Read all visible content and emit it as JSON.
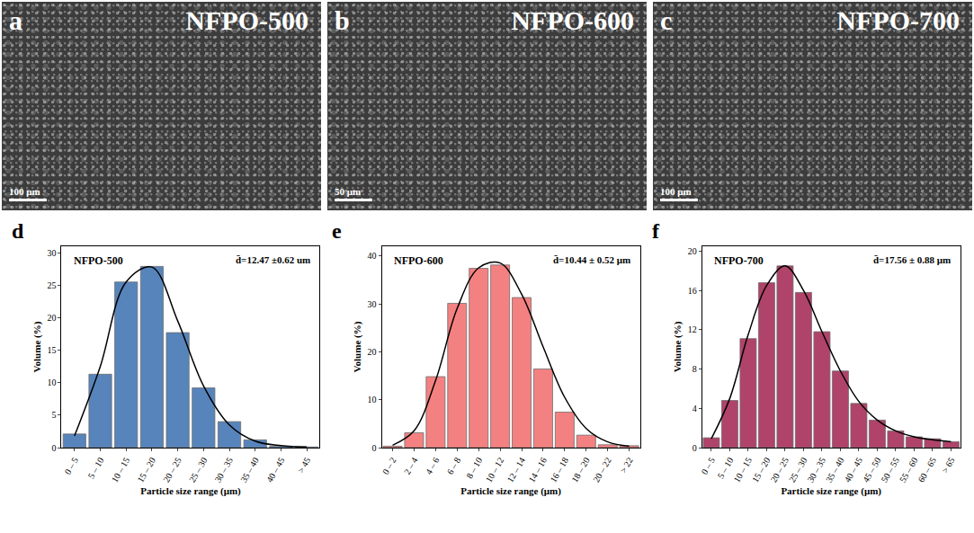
{
  "images": [
    {
      "panel": "a",
      "label": "NFPO-500",
      "scale_bar": "100 μm"
    },
    {
      "panel": "b",
      "label": "NFPO-600",
      "scale_bar": "50 μm"
    },
    {
      "panel": "c",
      "label": "NFPO-700",
      "scale_bar": "100 μm"
    }
  ],
  "chart_data": [
    {
      "type": "bar",
      "panel": "d",
      "title": "NFPO-500",
      "annotations": [
        "d̄=12.47 ±0.62 um"
      ],
      "x_label": "Particle size range (μm)",
      "y_label": "Volume (%)",
      "categories": [
        "0 – 5",
        "5 – 10",
        "10 – 15",
        "15 – 20",
        "20 – 25",
        "25 – 30",
        "30 – 35",
        "35 – 40",
        "40 – 45",
        "> 45"
      ],
      "series": [
        {
          "type": "bar",
          "color": "#3a6fb0",
          "values": [
            2.1,
            11.3,
            25.5,
            27.9,
            17.7,
            9.2,
            4.0,
            1.2,
            0.2,
            0.1
          ]
        },
        {
          "type": "line",
          "color": "#000000",
          "values": [
            1.8,
            12.5,
            25.5,
            27.8,
            19.5,
            9.5,
            3.5,
            1.0,
            0.3,
            0.1
          ]
        }
      ],
      "ylim": [
        0,
        31
      ],
      "yticks": [
        0,
        5,
        10,
        15,
        20,
        25,
        30
      ]
    },
    {
      "type": "bar",
      "panel": "e",
      "title": "NFPO-600",
      "annotations": [
        "d̄=10.44 ± 0.52 μm"
      ],
      "x_label": "Particle size range (μm)",
      "y_label": "Volume (%)",
      "categories": [
        "0 – 2",
        "2 – 4",
        "4 – 6",
        "6 – 8",
        "8 – 10",
        "10 – 12",
        "12 – 14",
        "14 – 16",
        "16 – 18",
        "18 – 20",
        "20 – 22",
        "> 22"
      ],
      "series": [
        {
          "type": "bar",
          "color": "#f26b6b",
          "values": [
            0.3,
            3.1,
            14.8,
            30.1,
            37.4,
            38.1,
            31.3,
            16.4,
            7.4,
            2.6,
            0.6,
            0.4
          ]
        },
        {
          "type": "line",
          "color": "#000000",
          "values": [
            0.5,
            3.5,
            14.0,
            29.0,
            37.5,
            38.5,
            32.0,
            21.0,
            10.5,
            4.0,
            1.2,
            0.3
          ]
        }
      ],
      "ylim": [
        0,
        42
      ],
      "yticks": [
        0,
        10,
        20,
        30,
        40
      ]
    },
    {
      "type": "bar",
      "panel": "f",
      "title": "NFPO-700",
      "annotations": [
        "d̄=17.56 ± 0.88 μm"
      ],
      "x_label": "Particle size range (μm)",
      "y_label": "Volume (%)",
      "categories": [
        "0 – 5",
        "5 – 10",
        "10 – 15",
        "15 – 20",
        "20 – 25",
        "25 – 30",
        "30 – 35",
        "35 – 40",
        "40 – 45",
        "45 – 50",
        "50 – 55",
        "55 – 60",
        "60 – 65",
        "> 65"
      ],
      "series": [
        {
          "type": "bar",
          "color": "#a3234f",
          "values": [
            1.0,
            4.8,
            11.1,
            16.8,
            18.5,
            15.8,
            11.8,
            7.8,
            4.5,
            2.8,
            1.7,
            1.1,
            0.9,
            0.6
          ]
        },
        {
          "type": "line",
          "color": "#000000",
          "values": [
            0.9,
            5.0,
            11.5,
            16.5,
            18.5,
            16.0,
            11.8,
            7.8,
            4.7,
            2.8,
            1.7,
            1.1,
            0.8,
            0.6
          ]
        }
      ],
      "ylim": [
        0,
        20.5
      ],
      "yticks": [
        0,
        4,
        8,
        12,
        16,
        20
      ]
    }
  ]
}
